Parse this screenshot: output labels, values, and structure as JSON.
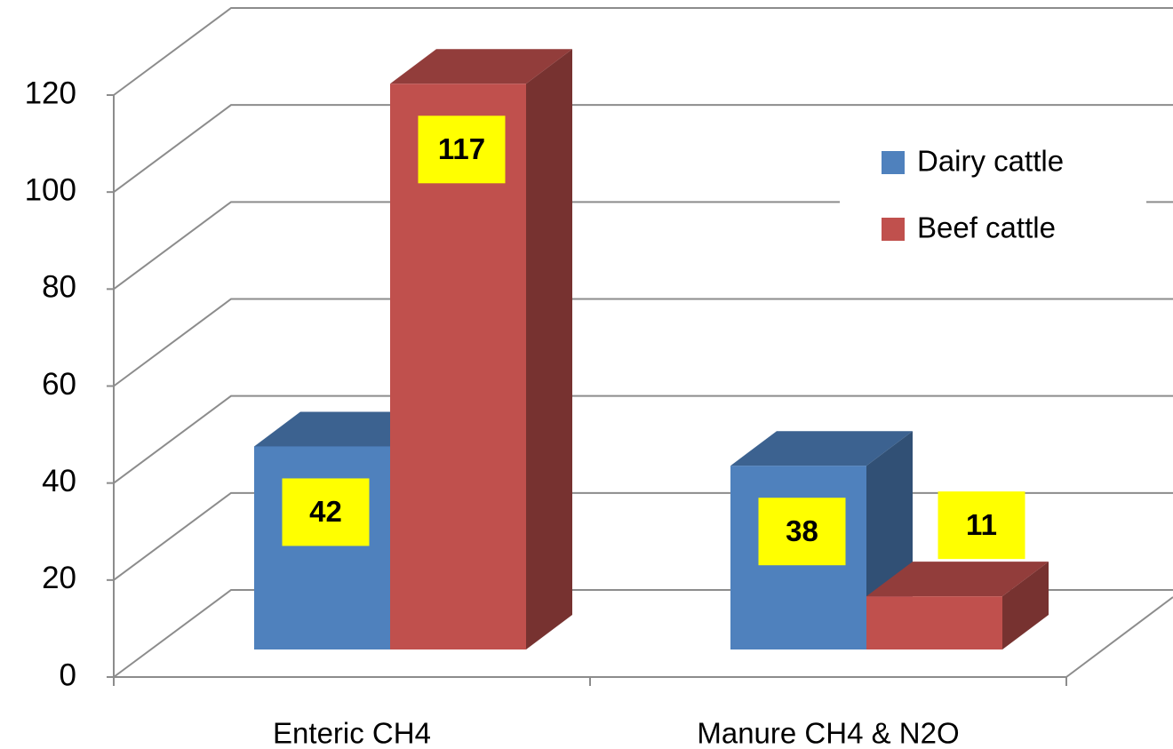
{
  "chart_data": {
    "type": "bar",
    "categories": [
      "Enteric CH4",
      "Manure CH4 & N2O"
    ],
    "series": [
      {
        "name": "Dairy cattle",
        "color": "#4f81bd",
        "values": [
          42,
          38
        ]
      },
      {
        "name": "Beef cattle",
        "color": "#c0504d",
        "values": [
          117,
          11
        ]
      }
    ],
    "ylim": [
      0,
      120
    ],
    "yticks": [
      0,
      20,
      40,
      60,
      80,
      100,
      120
    ],
    "grid": true,
    "legend": "right"
  }
}
